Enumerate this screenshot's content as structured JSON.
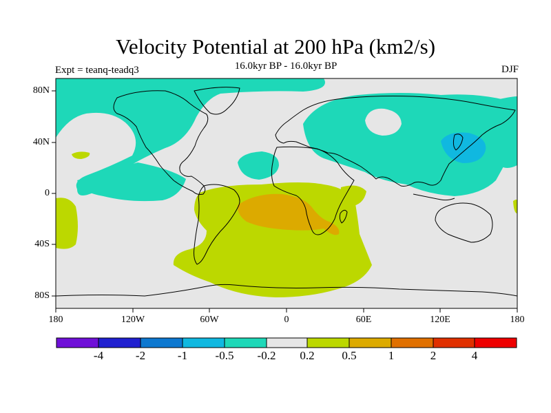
{
  "header": {
    "title": "Velocity Potential at 200 hPa (km2/s)",
    "subtitle": "16.0kyr BP - 16.0kyr BP",
    "left_label": "Expt = teanq-teadq3",
    "right_label": "DJF"
  },
  "map": {
    "lat_ticks": [
      "80N",
      "40N",
      "0",
      "40S",
      "80S"
    ],
    "lon_ticks": [
      "180",
      "120W",
      "60W",
      "0",
      "60E",
      "120E",
      "180"
    ]
  },
  "colorbar": {
    "labels": [
      "-4",
      "-2",
      "-1",
      "-0.5",
      "-0.2",
      "0.2",
      "0.5",
      "1",
      "2",
      "4"
    ],
    "colors": [
      "#6f10d8",
      "#2020d0",
      "#0d78d0",
      "#10b8e0",
      "#1ed8b8",
      "#e6e6e6",
      "#bcd800",
      "#dcaa00",
      "#e07000",
      "#e03000",
      "#ee0000"
    ]
  },
  "chart_data": {
    "type": "contour-map",
    "variable": "Velocity potential at 200 hPa",
    "units": "km2/s",
    "season": "DJF",
    "levels": [
      -4,
      -2,
      -1,
      -0.5,
      -0.2,
      0.2,
      0.5,
      1,
      2,
      4
    ],
    "lon_range": [
      -180,
      180
    ],
    "lat_range": [
      -90,
      90
    ]
  }
}
